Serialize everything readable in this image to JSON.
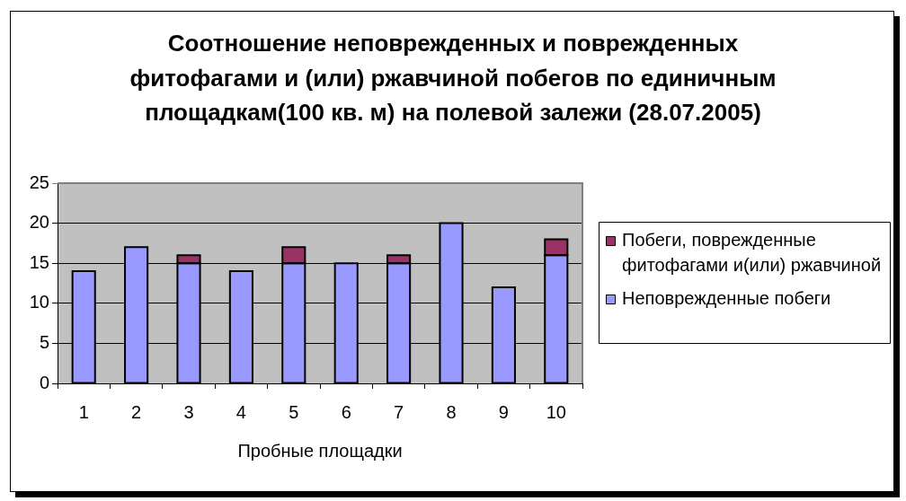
{
  "chart_data": {
    "type": "bar",
    "title": "Соотношение неповрежденных и поврежденных фитофагами и (или) ржавчиной побегов по единичным площадкам(100 кв. м) на полевой залежи (28.07.2005)",
    "xlabel": "Пробные площадки",
    "categories": [
      "1",
      "2",
      "3",
      "4",
      "5",
      "6",
      "7",
      "8",
      "9",
      "10"
    ],
    "series": [
      {
        "name": "Неповрежденные побеги",
        "color": "#9999ff",
        "values": [
          14,
          17,
          15,
          14,
          15,
          15,
          15,
          20,
          12,
          16
        ]
      },
      {
        "name": "Побеги, поврежденные фитофагами и(или) ржавчиной",
        "color": "#993366",
        "values": [
          null,
          null,
          1,
          null,
          2,
          null,
          1,
          null,
          null,
          2
        ]
      }
    ],
    "stacked": true,
    "ylim": [
      0,
      25
    ],
    "yticks": [
      0,
      5,
      10,
      15,
      20,
      25
    ],
    "grid": "y",
    "legend": "right"
  }
}
